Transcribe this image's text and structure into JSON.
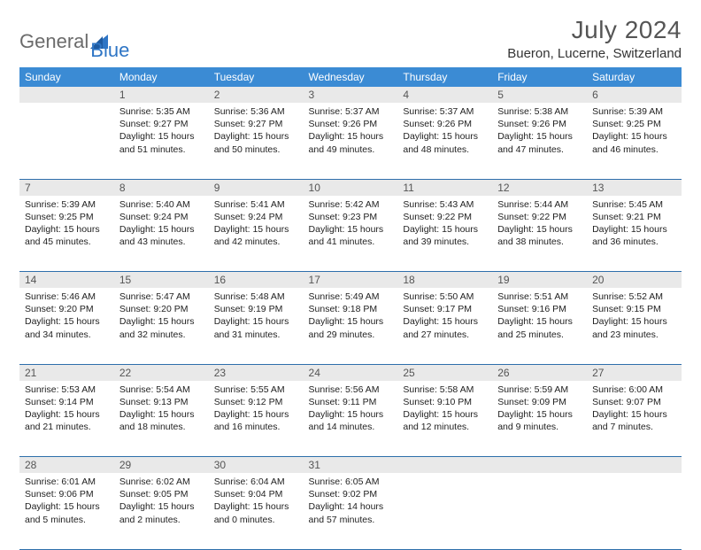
{
  "logo": {
    "part1": "General",
    "part2": "Blue"
  },
  "title": "July 2024",
  "location": "Bueron, Lucerne, Switzerland",
  "colors": {
    "header_bg": "#3b8bd4",
    "header_text": "#ffffff",
    "daynum_bg": "#e9e9e9",
    "row_border": "#2e6fab",
    "logo_gray": "#6b6b6b",
    "logo_blue": "#2e75c5"
  },
  "dayHeaders": [
    "Sunday",
    "Monday",
    "Tuesday",
    "Wednesday",
    "Thursday",
    "Friday",
    "Saturday"
  ],
  "weeks": [
    {
      "nums": [
        "",
        "1",
        "2",
        "3",
        "4",
        "5",
        "6"
      ],
      "cells": [
        null,
        {
          "sunrise": "5:35 AM",
          "sunset": "9:27 PM",
          "daylight": "15 hours and 51 minutes."
        },
        {
          "sunrise": "5:36 AM",
          "sunset": "9:27 PM",
          "daylight": "15 hours and 50 minutes."
        },
        {
          "sunrise": "5:37 AM",
          "sunset": "9:26 PM",
          "daylight": "15 hours and 49 minutes."
        },
        {
          "sunrise": "5:37 AM",
          "sunset": "9:26 PM",
          "daylight": "15 hours and 48 minutes."
        },
        {
          "sunrise": "5:38 AM",
          "sunset": "9:26 PM",
          "daylight": "15 hours and 47 minutes."
        },
        {
          "sunrise": "5:39 AM",
          "sunset": "9:25 PM",
          "daylight": "15 hours and 46 minutes."
        }
      ]
    },
    {
      "nums": [
        "7",
        "8",
        "9",
        "10",
        "11",
        "12",
        "13"
      ],
      "cells": [
        {
          "sunrise": "5:39 AM",
          "sunset": "9:25 PM",
          "daylight": "15 hours and 45 minutes."
        },
        {
          "sunrise": "5:40 AM",
          "sunset": "9:24 PM",
          "daylight": "15 hours and 43 minutes."
        },
        {
          "sunrise": "5:41 AM",
          "sunset": "9:24 PM",
          "daylight": "15 hours and 42 minutes."
        },
        {
          "sunrise": "5:42 AM",
          "sunset": "9:23 PM",
          "daylight": "15 hours and 41 minutes."
        },
        {
          "sunrise": "5:43 AM",
          "sunset": "9:22 PM",
          "daylight": "15 hours and 39 minutes."
        },
        {
          "sunrise": "5:44 AM",
          "sunset": "9:22 PM",
          "daylight": "15 hours and 38 minutes."
        },
        {
          "sunrise": "5:45 AM",
          "sunset": "9:21 PM",
          "daylight": "15 hours and 36 minutes."
        }
      ]
    },
    {
      "nums": [
        "14",
        "15",
        "16",
        "17",
        "18",
        "19",
        "20"
      ],
      "cells": [
        {
          "sunrise": "5:46 AM",
          "sunset": "9:20 PM",
          "daylight": "15 hours and 34 minutes."
        },
        {
          "sunrise": "5:47 AM",
          "sunset": "9:20 PM",
          "daylight": "15 hours and 32 minutes."
        },
        {
          "sunrise": "5:48 AM",
          "sunset": "9:19 PM",
          "daylight": "15 hours and 31 minutes."
        },
        {
          "sunrise": "5:49 AM",
          "sunset": "9:18 PM",
          "daylight": "15 hours and 29 minutes."
        },
        {
          "sunrise": "5:50 AM",
          "sunset": "9:17 PM",
          "daylight": "15 hours and 27 minutes."
        },
        {
          "sunrise": "5:51 AM",
          "sunset": "9:16 PM",
          "daylight": "15 hours and 25 minutes."
        },
        {
          "sunrise": "5:52 AM",
          "sunset": "9:15 PM",
          "daylight": "15 hours and 23 minutes."
        }
      ]
    },
    {
      "nums": [
        "21",
        "22",
        "23",
        "24",
        "25",
        "26",
        "27"
      ],
      "cells": [
        {
          "sunrise": "5:53 AM",
          "sunset": "9:14 PM",
          "daylight": "15 hours and 21 minutes."
        },
        {
          "sunrise": "5:54 AM",
          "sunset": "9:13 PM",
          "daylight": "15 hours and 18 minutes."
        },
        {
          "sunrise": "5:55 AM",
          "sunset": "9:12 PM",
          "daylight": "15 hours and 16 minutes."
        },
        {
          "sunrise": "5:56 AM",
          "sunset": "9:11 PM",
          "daylight": "15 hours and 14 minutes."
        },
        {
          "sunrise": "5:58 AM",
          "sunset": "9:10 PM",
          "daylight": "15 hours and 12 minutes."
        },
        {
          "sunrise": "5:59 AM",
          "sunset": "9:09 PM",
          "daylight": "15 hours and 9 minutes."
        },
        {
          "sunrise": "6:00 AM",
          "sunset": "9:07 PM",
          "daylight": "15 hours and 7 minutes."
        }
      ]
    },
    {
      "nums": [
        "28",
        "29",
        "30",
        "31",
        "",
        "",
        ""
      ],
      "cells": [
        {
          "sunrise": "6:01 AM",
          "sunset": "9:06 PM",
          "daylight": "15 hours and 5 minutes."
        },
        {
          "sunrise": "6:02 AM",
          "sunset": "9:05 PM",
          "daylight": "15 hours and 2 minutes."
        },
        {
          "sunrise": "6:04 AM",
          "sunset": "9:04 PM",
          "daylight": "15 hours and 0 minutes."
        },
        {
          "sunrise": "6:05 AM",
          "sunset": "9:02 PM",
          "daylight": "14 hours and 57 minutes."
        },
        null,
        null,
        null
      ]
    }
  ],
  "labels": {
    "sunrise": "Sunrise:",
    "sunset": "Sunset:",
    "daylight": "Daylight:"
  }
}
